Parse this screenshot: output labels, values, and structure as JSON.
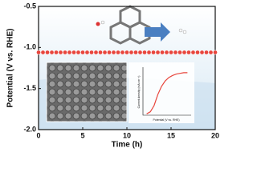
{
  "chart_data": [
    {
      "type": "scatter",
      "x_label": "Time (h)",
      "y_label": "Potential (V vs. RHE)",
      "x": [
        0,
        0.5,
        1,
        1.5,
        2,
        2.5,
        3,
        3.5,
        4,
        4.5,
        5,
        5.5,
        6,
        6.5,
        7,
        7.5,
        8,
        8.5,
        9,
        9.5,
        10,
        10.5,
        11,
        11.5,
        12,
        12.5,
        13,
        13.5,
        14,
        14.5,
        15,
        15.5,
        16,
        16.5,
        17,
        17.5,
        18,
        18.5,
        19,
        19.5,
        20
      ],
      "values": [
        -1.06,
        -1.06,
        -1.06,
        -1.06,
        -1.06,
        -1.06,
        -1.06,
        -1.06,
        -1.06,
        -1.06,
        -1.06,
        -1.06,
        -1.06,
        -1.06,
        -1.06,
        -1.06,
        -1.06,
        -1.06,
        -1.06,
        -1.06,
        -1.06,
        -1.06,
        -1.06,
        -1.06,
        -1.06,
        -1.06,
        -1.06,
        -1.06,
        -1.06,
        -1.06,
        -1.06,
        -1.06,
        -1.06,
        -1.06,
        -1.06,
        -1.06,
        -1.06,
        -1.06,
        -1.06,
        -1.06,
        -1.06
      ],
      "color": "#e8453c",
      "xlim": [
        0,
        20
      ],
      "xticks": [
        0,
        5,
        10,
        15,
        20
      ],
      "ylim": [
        -2.0,
        -0.5
      ],
      "yticks": [
        {
          "value": -2.0,
          "label": "-2.0"
        },
        -1.5,
        {
          "value": -1.0,
          "label": "-1.0"
        },
        -0.5
      ]
    },
    {
      "type": "line",
      "x_label": "Potential (V vs. RHE)",
      "y_label": "Current density (mA cm⁻²)",
      "x": [
        -0.6,
        -0.55,
        -0.5,
        -0.45,
        -0.4,
        -0.35,
        -0.3,
        -0.25,
        -0.2,
        -0.15,
        -0.1,
        -0.05
      ],
      "values": [
        2,
        5,
        14,
        30,
        42,
        50,
        55,
        58,
        60,
        61,
        62,
        62
      ],
      "color": "#e8453c",
      "xlim": [
        -0.65,
        0
      ],
      "ylim": [
        0,
        70
      ]
    }
  ]
}
